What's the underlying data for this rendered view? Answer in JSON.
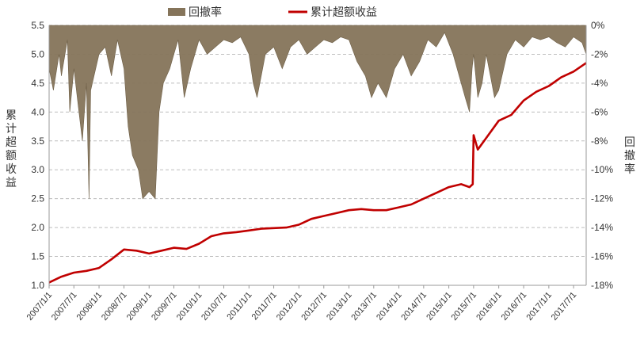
{
  "chart_data": {
    "type": "line",
    "legend": {
      "placement": "top-center",
      "items": [
        {
          "label": "回撤率",
          "color": "#85745a",
          "kind": "area"
        },
        {
          "label": "累计超额收益",
          "color": "#c00000",
          "kind": "line"
        }
      ]
    },
    "ylabel": "累计超额收益",
    "y2label": "回撤率",
    "y_axis": {
      "min": 1.0,
      "max": 5.5,
      "step": 0.5,
      "ticks": [
        "1.0",
        "1.5",
        "2.0",
        "2.5",
        "3.0",
        "3.5",
        "4.0",
        "4.5",
        "5.0",
        "5.5"
      ]
    },
    "y2_axis": {
      "min": -18,
      "max": 0,
      "step": 2,
      "unit": "%",
      "ticks": [
        "0%",
        "-2%",
        "-4%",
        "-6%",
        "-8%",
        "-10%",
        "-12%",
        "-14%",
        "-16%",
        "-18%"
      ]
    },
    "x_axis": {
      "start": "2007/1/1",
      "end": "2017/10/1",
      "ticks": [
        "2007/1/1",
        "2007/7/1",
        "2008/1/1",
        "2008/7/1",
        "2009/1/1",
        "2009/7/1",
        "2010/1/1",
        "2010/7/1",
        "2011/1/1",
        "2011/7/1",
        "2012/1/1",
        "2012/7/1",
        "2013/1/1",
        "2013/7/1",
        "2014/1/1",
        "2014/7/1",
        "2015/1/1",
        "2015/7/1",
        "2016/1/1",
        "2016/7/1",
        "2017/1/1",
        "2017/7/1"
      ]
    },
    "grid": {
      "horizontal": true,
      "style": "dashed"
    },
    "series": [
      {
        "name": "累计超额收益",
        "color": "#c00000",
        "x": [
          "2007/1/1",
          "2007/4/1",
          "2007/7/1",
          "2007/10/1",
          "2008/1/1",
          "2008/4/1",
          "2008/7/1",
          "2008/10/1",
          "2009/1/1",
          "2009/4/1",
          "2009/7/1",
          "2009/10/1",
          "2010/1/1",
          "2010/4/1",
          "2010/7/1",
          "2010/10/1",
          "2011/1/1",
          "2011/4/1",
          "2011/7/1",
          "2011/10/1",
          "2012/1/1",
          "2012/4/1",
          "2012/7/1",
          "2012/10/1",
          "2013/1/1",
          "2013/4/1",
          "2013/7/1",
          "2013/10/1",
          "2014/1/1",
          "2014/4/1",
          "2014/7/1",
          "2014/10/1",
          "2015/1/1",
          "2015/4/1",
          "2015/6/1",
          "2015/6/25",
          "2015/7/1",
          "2015/8/1",
          "2015/10/1",
          "2016/1/1",
          "2016/4/1",
          "2016/7/1",
          "2016/10/1",
          "2017/1/1",
          "2017/4/1",
          "2017/7/1",
          "2017/10/1"
        ],
        "y": [
          1.05,
          1.15,
          1.22,
          1.25,
          1.3,
          1.45,
          1.62,
          1.6,
          1.55,
          1.6,
          1.65,
          1.63,
          1.72,
          1.85,
          1.9,
          1.92,
          1.95,
          1.98,
          1.99,
          2.0,
          2.05,
          2.15,
          2.2,
          2.25,
          2.3,
          2.32,
          2.3,
          2.3,
          2.35,
          2.4,
          2.5,
          2.6,
          2.7,
          2.75,
          2.7,
          2.75,
          3.6,
          3.35,
          3.55,
          3.85,
          3.95,
          4.2,
          4.35,
          4.45,
          4.6,
          4.7,
          4.85
        ]
      },
      {
        "name": "回撤率",
        "color": "#85745a",
        "unit": "%",
        "x": [
          "2007/1/1",
          "2007/2/1",
          "2007/3/15",
          "2007/4/1",
          "2007/5/15",
          "2007/6/1",
          "2007/7/1",
          "2007/8/1",
          "2007/9/1",
          "2007/10/1",
          "2007/10/20",
          "2007/11/1",
          "2008/1/1",
          "2008/2/15",
          "2008/4/1",
          "2008/5/15",
          "2008/7/1",
          "2008/8/1",
          "2008/9/1",
          "2008/10/15",
          "2008/11/15",
          "2009/1/1",
          "2009/2/15",
          "2009/3/15",
          "2009/4/15",
          "2009/6/1",
          "2009/7/1",
          "2009/8/1",
          "2009/9/15",
          "2009/11/1",
          "2010/1/1",
          "2010/3/1",
          "2010/5/1",
          "2010/7/1",
          "2010/9/1",
          "2010/11/1",
          "2011/1/1",
          "2011/2/1",
          "2011/3/1",
          "2011/4/1",
          "2011/5/1",
          "2011/7/1",
          "2011/9/1",
          "2011/11/1",
          "2012/1/1",
          "2012/3/1",
          "2012/5/1",
          "2012/7/1",
          "2012/9/1",
          "2012/11/1",
          "2013/1/1",
          "2013/3/1",
          "2013/5/1",
          "2013/6/15",
          "2013/8/1",
          "2013/10/1",
          "2013/12/1",
          "2014/2/1",
          "2014/4/1",
          "2014/6/1",
          "2014/8/1",
          "2014/10/1",
          "2014/12/1",
          "2015/2/1",
          "2015/4/1",
          "2015/5/1",
          "2015/6/1",
          "2015/6/20",
          "2015/7/1",
          "2015/8/1",
          "2015/9/1",
          "2015/10/1",
          "2015/11/1",
          "2015/12/1",
          "2016/1/1",
          "2016/3/1",
          "2016/5/1",
          "2016/7/1",
          "2016/9/1",
          "2016/11/1",
          "2017/1/1",
          "2017/3/1",
          "2017/5/1",
          "2017/7/1",
          "2017/9/1",
          "2017/10/1"
        ],
        "y": [
          -3,
          -4.5,
          -2,
          -3.5,
          -1,
          -6,
          -3,
          -5.5,
          -8,
          -4,
          -12,
          -4.5,
          -2,
          -1.5,
          -3.5,
          -1,
          -3,
          -7,
          -9,
          -10,
          -12,
          -11.5,
          -12,
          -6,
          -4,
          -3,
          -2,
          -1,
          -5,
          -3,
          -1,
          -2,
          -1.5,
          -1,
          -1.2,
          -0.8,
          -2,
          -4,
          -5,
          -3.5,
          -2,
          -1.5,
          -3,
          -1.5,
          -1,
          -2,
          -1.5,
          -1,
          -1.2,
          -0.8,
          -1,
          -2.5,
          -3.5,
          -5,
          -4,
          -5,
          -3,
          -2,
          -3.5,
          -2.5,
          -1,
          -1.5,
          -0.5,
          -2,
          -4,
          -5,
          -6,
          -3,
          -2,
          -5,
          -4,
          -2,
          -3.5,
          -5,
          -4.5,
          -2,
          -1,
          -1.5,
          -0.8,
          -1,
          -0.8,
          -1.2,
          -1.5,
          -0.8,
          -1.2,
          -2
        ]
      }
    ]
  }
}
